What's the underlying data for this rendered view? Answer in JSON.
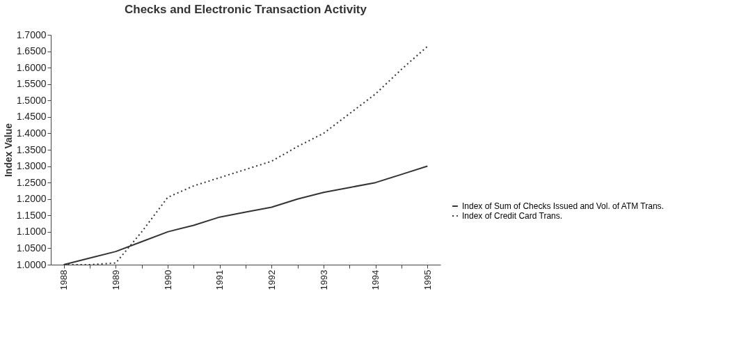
{
  "chart_data": {
    "type": "line",
    "title": "Checks and Electronic Transaction Activity",
    "ylabel": "Index Value",
    "categories": [
      "1988",
      null,
      "1989",
      null,
      "1990",
      null,
      "1991",
      null,
      "1992",
      null,
      "1993",
      null,
      "1994",
      null,
      "1995"
    ],
    "series": [
      {
        "name": "Index of Sum of Checks Issued and Vol. of ATM Trans.",
        "color": "#333333",
        "line_style": "solid",
        "values": [
          1.0,
          1.02,
          1.04,
          1.07,
          1.1,
          1.12,
          1.145,
          1.16,
          1.175,
          1.2,
          1.22,
          1.235,
          1.25,
          1.275,
          1.3
        ]
      },
      {
        "name": "Index of Credit Card Trans.",
        "color": "#333333",
        "line_style": "dotted",
        "values": [
          1.0,
          1.0,
          1.005,
          1.1,
          1.205,
          1.24,
          1.265,
          1.29,
          1.315,
          1.36,
          1.4,
          1.46,
          1.52,
          1.595,
          1.665
        ]
      }
    ],
    "ylim": [
      1.0,
      1.7
    ],
    "yticks": [
      {
        "value": 1.0,
        "label": "1.0000"
      },
      {
        "value": 1.05,
        "label": "1.0500"
      },
      {
        "value": 1.1,
        "label": "1.1000"
      },
      {
        "value": 1.15,
        "label": "1.1500"
      },
      {
        "value": 1.2,
        "label": "1.2000"
      },
      {
        "value": 1.25,
        "label": "1.2500"
      },
      {
        "value": 1.3,
        "label": "1.3000"
      },
      {
        "value": 1.35,
        "label": "1.3500"
      },
      {
        "value": 1.4,
        "label": "1.4000"
      },
      {
        "value": 1.45,
        "label": "1.4500"
      },
      {
        "value": 1.5,
        "label": "1.5000"
      },
      {
        "value": 1.55,
        "label": "1.5500"
      },
      {
        "value": 1.6,
        "label": "1.6000"
      },
      {
        "value": 1.65,
        "label": "1.6500"
      },
      {
        "value": 1.7,
        "label": "1.7000"
      }
    ],
    "grid": false,
    "legend": "bottom right",
    "marker": "none"
  }
}
